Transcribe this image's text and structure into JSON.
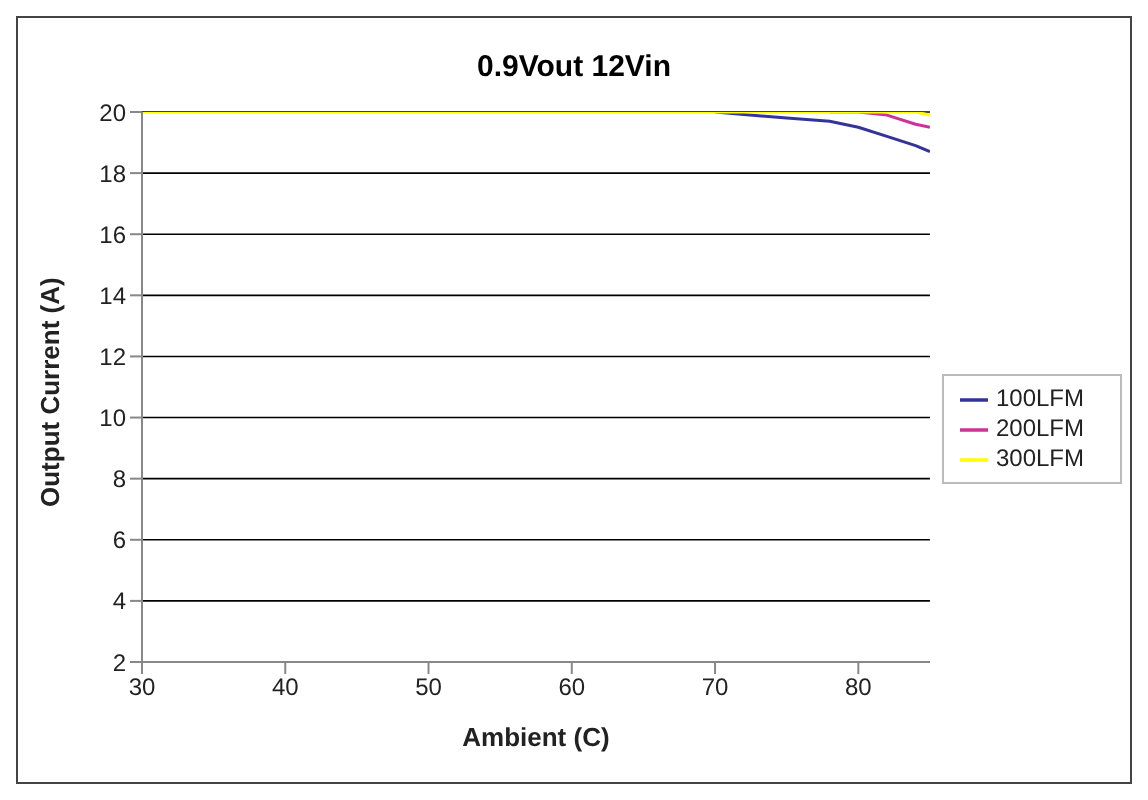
{
  "chart_data": {
    "type": "line",
    "title": "0.9Vout 12Vin",
    "xlabel": "Ambient (C)",
    "ylabel": "Output Current (A)",
    "x": [
      30,
      70,
      75,
      78,
      80,
      82,
      84,
      85
    ],
    "series": [
      {
        "name": "100LFM",
        "color": "#333399",
        "values": [
          null,
          20,
          19.8,
          19.7,
          19.5,
          19.2,
          18.9,
          18.7
        ]
      },
      {
        "name": "200LFM",
        "color": "#cc3399",
        "values": [
          null,
          null,
          null,
          20,
          20,
          19.9,
          19.6,
          19.5
        ]
      },
      {
        "name": "300LFM",
        "color": "#ffff00",
        "values": [
          20,
          20,
          20,
          20,
          20,
          20,
          20,
          19.9
        ]
      }
    ],
    "xlim": [
      30,
      85
    ],
    "xticks": [
      30,
      40,
      50,
      60,
      70,
      80
    ],
    "ylim": [
      2,
      20
    ],
    "yticks": [
      2,
      4,
      6,
      8,
      10,
      12,
      14,
      16,
      18,
      20
    ],
    "grid": "y",
    "legend": "right",
    "marker": "none",
    "line_style": "solid"
  }
}
